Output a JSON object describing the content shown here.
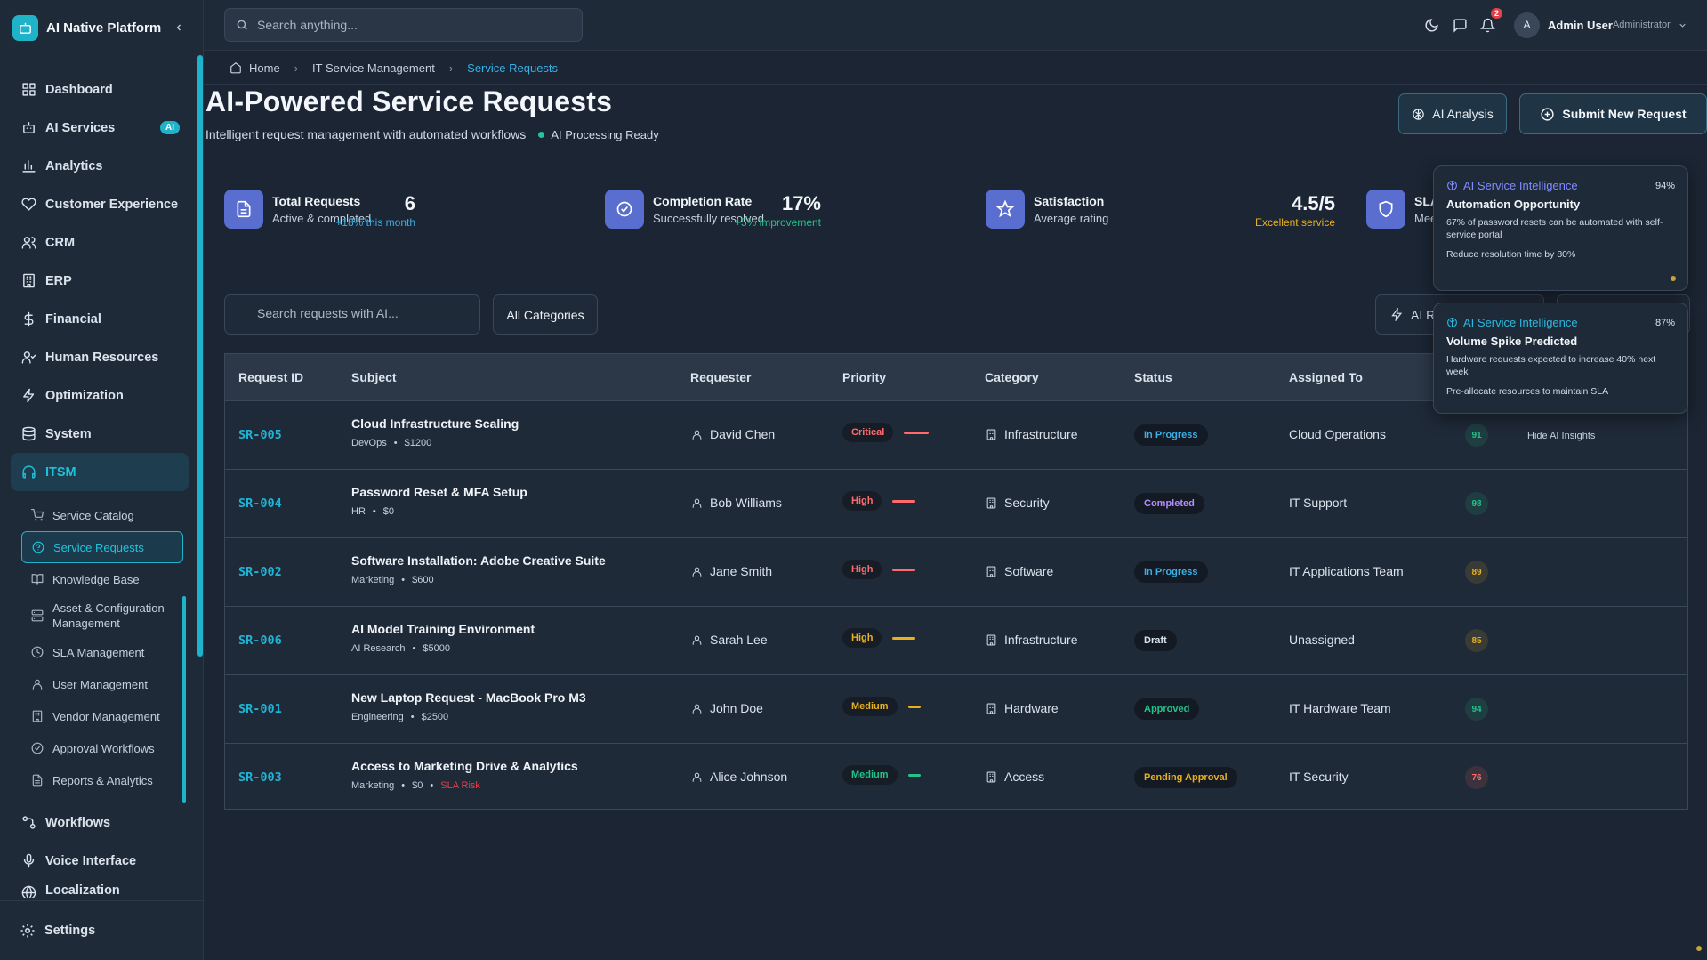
{
  "app": {
    "name": "AI Native Platform"
  },
  "sidebar": {
    "items": [
      {
        "label": "Dashboard",
        "icon": "grid-icon"
      },
      {
        "label": "AI Services",
        "icon": "bot-icon",
        "badge": "AI"
      },
      {
        "label": "Analytics",
        "icon": "bar-chart-icon"
      },
      {
        "label": "Customer Experience",
        "icon": "heart-icon"
      },
      {
        "label": "CRM",
        "icon": "users-icon"
      },
      {
        "label": "ERP",
        "icon": "building-icon"
      },
      {
        "label": "Financial",
        "icon": "dollar-icon"
      },
      {
        "label": "Human Resources",
        "icon": "user-group-icon"
      },
      {
        "label": "Optimization",
        "icon": "zap-icon"
      },
      {
        "label": "System",
        "icon": "database-icon"
      },
      {
        "label": "ITSM",
        "icon": "headset-icon"
      }
    ],
    "sub_items": [
      {
        "label": "Service Catalog",
        "icon": "cart-icon"
      },
      {
        "label": "Service Requests",
        "icon": "help-circle-icon"
      },
      {
        "label": "Knowledge Base",
        "icon": "book-icon"
      },
      {
        "label": "Asset & Configuration Management",
        "icon": "server-icon"
      },
      {
        "label": "SLA Management",
        "icon": "clock-icon"
      },
      {
        "label": "User Management",
        "icon": "user-icon"
      },
      {
        "label": "Vendor Management",
        "icon": "building-small-icon"
      },
      {
        "label": "Approval Workflows",
        "icon": "check-circle-icon"
      },
      {
        "label": "Reports & Analytics",
        "icon": "file-icon"
      }
    ],
    "bottom_items": [
      {
        "label": "Workflows",
        "icon": "workflow-icon"
      },
      {
        "label": "Voice Interface",
        "icon": "mic-icon"
      },
      {
        "label": "Localization",
        "icon": "globe-icon"
      }
    ],
    "settings": "Settings"
  },
  "topbar": {
    "search_placeholder": "Search anything...",
    "notifications_count": "2",
    "user_initial": "A",
    "user_name": "Admin User",
    "user_role": "Administrator"
  },
  "breadcrumb": [
    "Home",
    "IT Service Management",
    "Service Requests"
  ],
  "page": {
    "title": "AI-Powered Service Requests",
    "subtitle": "Intelligent request management with automated workflows",
    "status": "AI Processing Ready",
    "btn_analysis": "AI Analysis",
    "btn_submit": "Submit New Request"
  },
  "stats": [
    {
      "label": "Total Requests",
      "sub": "Active & completed",
      "value": "6",
      "delta": "+18% this month",
      "delta_color": "#3bb0e6"
    },
    {
      "label": "Completion Rate",
      "sub": "Successfully resolved",
      "value": "17%",
      "delta": "+5% improvement",
      "delta_color": "#22c38a"
    },
    {
      "label": "Satisfaction",
      "sub": "Average rating",
      "value": "4.5/5",
      "delta": "Excellent service",
      "delta_color": "#e6b020"
    },
    {
      "label": "SLA",
      "sub": "Mee"
    }
  ],
  "filters": {
    "search_placeholder": "Search requests with AI...",
    "category": "All Categories",
    "ai_button": "AI R"
  },
  "table": {
    "headers": [
      "Request ID",
      "Subject",
      "Requester",
      "Priority",
      "Category",
      "Status",
      "Assigned To"
    ],
    "rows": [
      {
        "id": "SR-005",
        "subject": "Cloud Infrastructure Scaling",
        "dept": "DevOps",
        "cost": "$1200",
        "risk": "",
        "requester": "David Chen",
        "priority": "Critical",
        "priority_color": "#ff6b6b",
        "category": "Infrastructure",
        "status": "In Progress",
        "status_color": "#3bb0e6",
        "assigned": "Cloud Operations",
        "score": "91",
        "score_color": "#22c38a"
      },
      {
        "id": "SR-004",
        "subject": "Password Reset & MFA Setup",
        "dept": "HR",
        "cost": "$0",
        "risk": "",
        "requester": "Bob Williams",
        "priority": "High",
        "priority_color": "#ff6b6b",
        "category": "Security",
        "status": "Completed",
        "status_color": "#b38cff",
        "assigned": "IT Support",
        "score": "98",
        "score_color": "#22c38a"
      },
      {
        "id": "SR-002",
        "subject": "Software Installation: Adobe Creative Suite",
        "dept": "Marketing",
        "cost": "$600",
        "risk": "",
        "requester": "Jane Smith",
        "priority": "High",
        "priority_color": "#ff6b6b",
        "category": "Software",
        "status": "In Progress",
        "status_color": "#3bb0e6",
        "assigned": "IT Applications Team",
        "score": "89",
        "score_color": "#e6b020"
      },
      {
        "id": "SR-006",
        "subject": "AI Model Training Environment",
        "dept": "AI Research",
        "cost": "$5000",
        "risk": "",
        "requester": "Sarah Lee",
        "priority": "High",
        "priority_color": "#e6b020",
        "category": "Infrastructure",
        "status": "Draft",
        "status_color": "#dbe3ec",
        "assigned": "Unassigned",
        "score": "85",
        "score_color": "#e6b020"
      },
      {
        "id": "SR-001",
        "subject": "New Laptop Request - MacBook Pro M3",
        "dept": "Engineering",
        "cost": "$2500",
        "risk": "",
        "requester": "John Doe",
        "priority": "Medium",
        "priority_color": "#e6b020",
        "category": "Hardware",
        "status": "Approved",
        "status_color": "#22c38a",
        "assigned": "IT Hardware Team",
        "score": "94",
        "score_color": "#22c38a"
      },
      {
        "id": "SR-003",
        "subject": "Access to Marketing Drive & Analytics",
        "dept": "Marketing",
        "cost": "$0",
        "risk": "SLA Risk",
        "requester": "Alice Johnson",
        "priority": "Medium",
        "priority_color": "#22c38a",
        "category": "Access",
        "status": "Pending Approval",
        "status_color": "#e6b020",
        "assigned": "IT Security",
        "score": "76",
        "score_color": "#ff6b6b"
      }
    ],
    "hide_insights": "Hide AI Insights"
  },
  "insights": [
    {
      "heading": "AI Service Intelligence",
      "confidence": "94%",
      "title": "Automation Opportunity",
      "body": "67% of password resets can be automated with self-service portal",
      "action": "Reduce resolution time by 80%"
    },
    {
      "heading": "AI Service Intelligence",
      "confidence": "87%",
      "title": "Volume Spike Predicted",
      "body": "Hardware requests expected to increase 40% next week",
      "action": "Pre-allocate resources to maintain SLA"
    }
  ]
}
